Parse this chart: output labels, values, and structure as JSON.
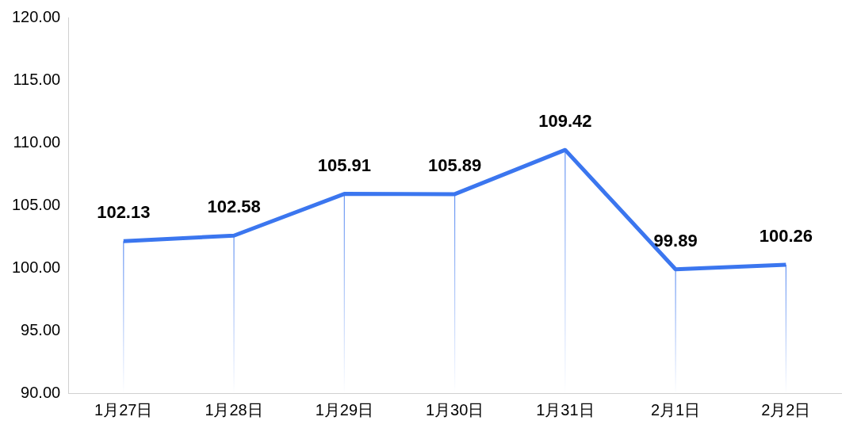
{
  "chart_data": {
    "type": "line",
    "categories": [
      "1月27日",
      "1月28日",
      "1月29日",
      "1月30日",
      "1月31日",
      "2月1日",
      "2月2日"
    ],
    "series": [
      {
        "color": "#3b76ef",
        "values": [
          102.13,
          102.58,
          105.91,
          105.89,
          109.42,
          99.89,
          100.26
        ]
      }
    ],
    "ylim": [
      90,
      120
    ],
    "yticks": [
      {
        "value": 90,
        "label": "90.00"
      },
      {
        "value": 95,
        "label": "95.00"
      },
      {
        "value": 100,
        "label": "100.00"
      },
      {
        "value": 105,
        "label": "105.00"
      },
      {
        "value": 110,
        "label": "110.00"
      },
      {
        "value": 115,
        "label": "115.00"
      },
      {
        "value": 120,
        "label": "120.00"
      }
    ],
    "grid": false,
    "legend": false,
    "marker": "none",
    "line_style": "solid",
    "data_labels": true
  }
}
